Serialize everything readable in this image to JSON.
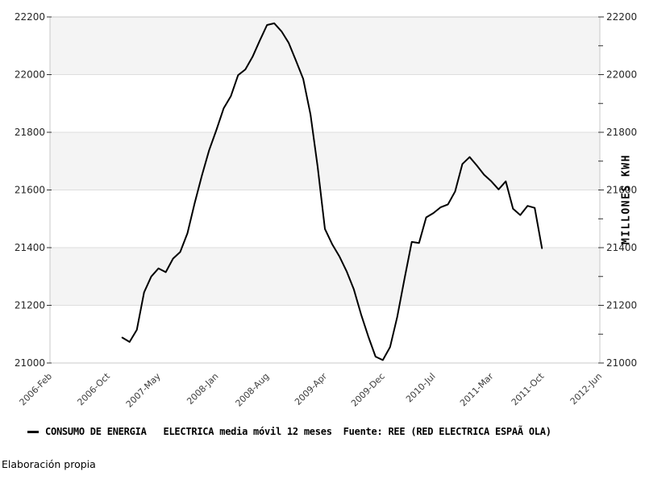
{
  "page": {
    "footer": "Elaboración propia"
  },
  "chart_data": {
    "type": "line",
    "title": "",
    "legend": {
      "position": "bottom-left",
      "label": "CONSUMO DE ENERGIA   ELECTRICA media móvil 12 meses  Fuente: REE (RED ELECTRICA ESPAÃ OLA)"
    },
    "y_axis_label": "MILLONES KWH",
    "ylim": [
      21000,
      22200
    ],
    "y_major_step": 200,
    "y_minor_step": 100,
    "y_tick_labels": [
      "21000",
      "21200",
      "21400",
      "21600",
      "21800",
      "22000",
      "22200"
    ],
    "x_range_months": [
      "2006-02",
      "2012-06"
    ],
    "x_tick_labels": [
      "2006-Feb",
      "2006-Oct",
      "2007-May",
      "2008-Jan",
      "2008-Aug",
      "2009-Apr",
      "2009-Dec",
      "2010-Jul",
      "2011-Mar",
      "2011-Oct",
      "2012-Jun"
    ],
    "grid": "horizontal alternating bands, gridlines every 200",
    "band_color": "#f4f4f4",
    "gridline_color": "#dedede",
    "axis_border_color": "#c8c8c8",
    "line_color": "#000000",
    "series": [
      {
        "name": "CONSUMO DE ENERGIA ELECTRICA media móvil 12 meses",
        "dates": [
          "2006-12",
          "2007-01",
          "2007-02",
          "2007-03",
          "2007-04",
          "2007-05",
          "2007-06",
          "2007-07",
          "2007-08",
          "2007-09",
          "2007-10",
          "2007-11",
          "2007-12",
          "2008-01",
          "2008-02",
          "2008-03",
          "2008-04",
          "2008-05",
          "2008-06",
          "2008-07",
          "2008-08",
          "2008-09",
          "2008-10",
          "2008-11",
          "2008-12",
          "2009-01",
          "2009-02",
          "2009-03",
          "2009-04",
          "2009-05",
          "2009-06",
          "2009-07",
          "2009-08",
          "2009-09",
          "2009-10",
          "2009-11",
          "2009-12",
          "2010-01",
          "2010-02",
          "2010-03",
          "2010-04",
          "2010-05",
          "2010-06",
          "2010-07",
          "2010-08",
          "2010-09",
          "2010-10",
          "2010-11",
          "2010-12",
          "2011-01",
          "2011-02",
          "2011-03",
          "2011-04",
          "2011-05",
          "2011-06",
          "2011-07",
          "2011-08",
          "2011-09",
          "2011-10"
        ],
        "values": [
          21088,
          21073,
          21115,
          21245,
          21300,
          21328,
          21315,
          21362,
          21385,
          21450,
          21555,
          21650,
          21738,
          21808,
          21883,
          21925,
          21998,
          22018,
          22062,
          22118,
          22172,
          22178,
          22150,
          22110,
          22048,
          21985,
          21862,
          21680,
          21465,
          21412,
          21370,
          21318,
          21255,
          21168,
          21092,
          21022,
          21010,
          21055,
          21160,
          21292,
          21420,
          21416,
          21505,
          21520,
          21540,
          21550,
          21595,
          21690,
          21714,
          21685,
          21653,
          21630,
          21602,
          21630,
          21535,
          21513,
          21545,
          21538,
          21398
        ]
      }
    ]
  }
}
